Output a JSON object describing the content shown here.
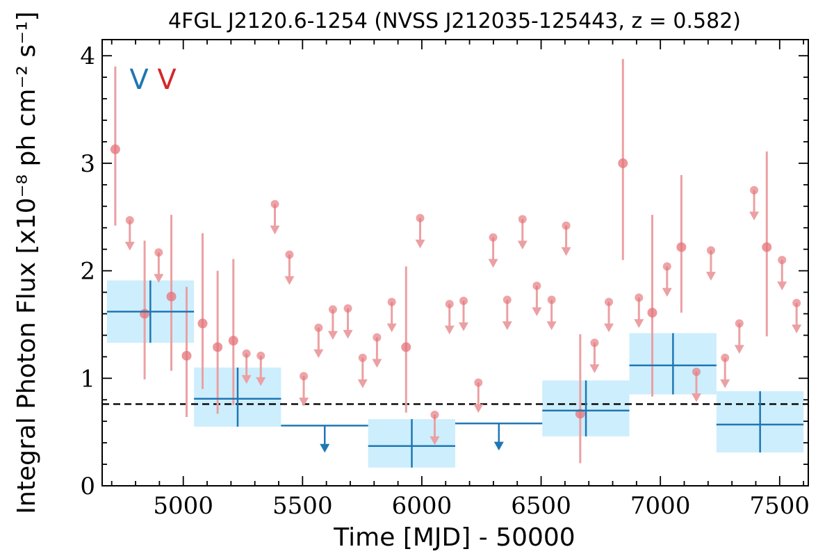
{
  "chart_data": {
    "type": "scatter",
    "title": "4FGL J2120.6-1254 (NVSS J212035-125443, z = 0.582)",
    "xlabel": "Time [MJD] - 50000",
    "ylabel": "Integral Photon Flux [x10⁻⁸ ph cm⁻² s⁻¹]",
    "xlim": [
      4660,
      7620
    ],
    "ylim": [
      0,
      4.15
    ],
    "x_ticks": [
      5000,
      5500,
      6000,
      6500,
      7000,
      7500
    ],
    "y_ticks": [
      0,
      1,
      2,
      3,
      4
    ],
    "grid": false,
    "markers": {
      "blue": {
        "label": "V",
        "color": "#1f77b4"
      },
      "red": {
        "label": "V",
        "color": "#d62728"
      }
    },
    "reference_level": 0.76,
    "colors": {
      "red_points": "#e57378",
      "red_errors": "#eba0a3",
      "blue": "#1f77b4",
      "blue_box": "#cdeefc"
    },
    "yearly_bins": [
      {
        "x0": 4680,
        "x1": 5045,
        "x": 4862,
        "y": 1.62,
        "ylo": 1.33,
        "yhi": 1.91,
        "upper_limit": false
      },
      {
        "x0": 5045,
        "x1": 5410,
        "x": 5228,
        "y": 0.81,
        "ylo": 0.55,
        "yhi": 1.1,
        "upper_limit": false
      },
      {
        "x0": 5410,
        "x1": 5775,
        "x": 5593,
        "y": 0.56,
        "upper_limit": true
      },
      {
        "x0": 5775,
        "x1": 6140,
        "x": 5958,
        "y": 0.37,
        "ylo": 0.17,
        "yhi": 0.62,
        "upper_limit": false
      },
      {
        "x0": 6140,
        "x1": 6505,
        "x": 6323,
        "y": 0.58,
        "upper_limit": true
      },
      {
        "x0": 6505,
        "x1": 6870,
        "x": 6688,
        "y": 0.7,
        "ylo": 0.46,
        "yhi": 0.98,
        "upper_limit": false
      },
      {
        "x0": 6870,
        "x1": 7235,
        "x": 7053,
        "y": 1.12,
        "ylo": 0.85,
        "yhi": 1.42,
        "upper_limit": false
      },
      {
        "x0": 7235,
        "x1": 7600,
        "x": 7418,
        "y": 0.57,
        "ylo": 0.31,
        "yhi": 0.88,
        "upper_limit": false
      }
    ],
    "monthly_detections": [
      {
        "x": 4715,
        "y": 3.13,
        "ylo": 2.42,
        "yhi": 3.9
      },
      {
        "x": 4838,
        "y": 1.6,
        "ylo": 0.99,
        "yhi": 2.28
      },
      {
        "x": 4950,
        "y": 1.76,
        "ylo": 1.07,
        "yhi": 2.52
      },
      {
        "x": 5014,
        "y": 1.21,
        "ylo": 0.64,
        "yhi": 1.85
      },
      {
        "x": 5081,
        "y": 1.51,
        "ylo": 0.9,
        "yhi": 2.35
      },
      {
        "x": 5144,
        "y": 1.29,
        "ylo": 0.67,
        "yhi": 2.0
      },
      {
        "x": 5210,
        "y": 1.35,
        "ylo": 0.75,
        "yhi": 2.11
      },
      {
        "x": 5934,
        "y": 1.29,
        "ylo": 0.68,
        "yhi": 2.04
      },
      {
        "x": 6664,
        "y": 0.67,
        "ylo": 0.21,
        "yhi": 1.41
      },
      {
        "x": 6843,
        "y": 3.0,
        "ylo": 2.1,
        "yhi": 3.97
      },
      {
        "x": 6966,
        "y": 1.61,
        "ylo": 0.83,
        "yhi": 2.52
      },
      {
        "x": 7088,
        "y": 2.22,
        "ylo": 1.61,
        "yhi": 2.89
      },
      {
        "x": 7446,
        "y": 2.22,
        "ylo": 1.39,
        "yhi": 3.11
      }
    ],
    "monthly_upper_limits": [
      {
        "x": 4776,
        "y": 2.47
      },
      {
        "x": 4897,
        "y": 2.17
      },
      {
        "x": 5265,
        "y": 1.23
      },
      {
        "x": 5325,
        "y": 1.21
      },
      {
        "x": 5384,
        "y": 2.62
      },
      {
        "x": 5445,
        "y": 2.15
      },
      {
        "x": 5505,
        "y": 1.02
      },
      {
        "x": 5567,
        "y": 1.47
      },
      {
        "x": 5627,
        "y": 1.64
      },
      {
        "x": 5690,
        "y": 1.65
      },
      {
        "x": 5752,
        "y": 1.19
      },
      {
        "x": 5812,
        "y": 1.38
      },
      {
        "x": 5874,
        "y": 1.71
      },
      {
        "x": 5993,
        "y": 2.49
      },
      {
        "x": 6054,
        "y": 0.66
      },
      {
        "x": 6116,
        "y": 1.69
      },
      {
        "x": 6175,
        "y": 1.72
      },
      {
        "x": 6237,
        "y": 0.96
      },
      {
        "x": 6299,
        "y": 2.31
      },
      {
        "x": 6358,
        "y": 1.73
      },
      {
        "x": 6422,
        "y": 2.48
      },
      {
        "x": 6482,
        "y": 1.86
      },
      {
        "x": 6544,
        "y": 1.73
      },
      {
        "x": 6605,
        "y": 2.42
      },
      {
        "x": 6724,
        "y": 1.33
      },
      {
        "x": 6784,
        "y": 1.71
      },
      {
        "x": 6910,
        "y": 1.75
      },
      {
        "x": 7028,
        "y": 2.04
      },
      {
        "x": 7151,
        "y": 1.06
      },
      {
        "x": 7212,
        "y": 2.19
      },
      {
        "x": 7271,
        "y": 1.19
      },
      {
        "x": 7331,
        "y": 1.51
      },
      {
        "x": 7393,
        "y": 2.75
      },
      {
        "x": 7510,
        "y": 2.1
      },
      {
        "x": 7571,
        "y": 1.7
      }
    ]
  }
}
